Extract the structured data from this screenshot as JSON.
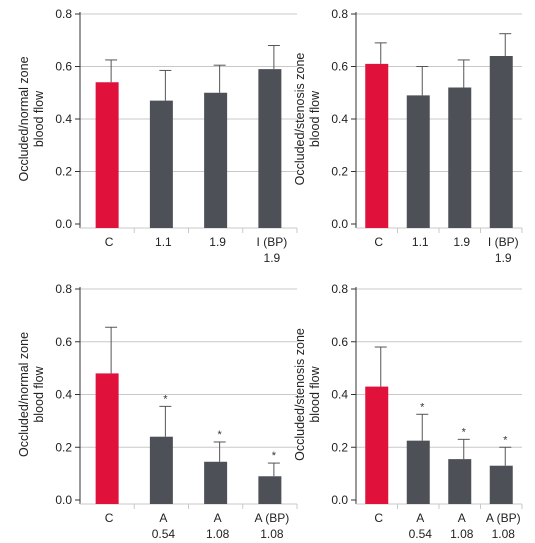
{
  "colors": {
    "control": "#e0123c",
    "treatment": "#4d5157",
    "grid": "#c8c8c8",
    "axis": "#333333",
    "errorbar": "#555555"
  },
  "chart_data": [
    {
      "type": "bar",
      "ylabel": [
        "Occluded/normal zone",
        "blood flow"
      ],
      "ylim": [
        0,
        0.8
      ],
      "yticks": [
        "0.0",
        "0.2",
        "0.4",
        "0.6",
        "0.8"
      ],
      "grid": true,
      "categories": [
        [
          "C"
        ],
        [
          "1.1"
        ],
        [
          "1.9"
        ],
        [
          "I (BP)",
          "1.9"
        ]
      ],
      "values": [
        0.54,
        0.47,
        0.5,
        0.59
      ],
      "errors": [
        0.085,
        0.115,
        0.105,
        0.09
      ],
      "stars": [
        "",
        "",
        "",
        ""
      ]
    },
    {
      "type": "bar",
      "ylabel": [
        "Occluded/stenosis zone",
        "blood flow"
      ],
      "ylim": [
        0,
        0.8
      ],
      "yticks": [
        "0.0",
        "0.2",
        "0.4",
        "0.6",
        "0.8"
      ],
      "grid": true,
      "categories": [
        [
          "C"
        ],
        [
          "1.1"
        ],
        [
          "1.9"
        ],
        [
          "I (BP)",
          "1.9"
        ]
      ],
      "values": [
        0.61,
        0.49,
        0.52,
        0.64
      ],
      "errors": [
        0.08,
        0.11,
        0.105,
        0.085
      ],
      "stars": [
        "",
        "",
        "",
        ""
      ]
    },
    {
      "type": "bar",
      "ylabel": [
        "Occluded/normal zone",
        "blood flow"
      ],
      "ylim": [
        0,
        0.8
      ],
      "yticks": [
        "0.0",
        "0.2",
        "0.4",
        "0.6",
        "0.8"
      ],
      "grid": true,
      "categories": [
        [
          "C"
        ],
        [
          "A",
          "0.54"
        ],
        [
          "A",
          "1.08"
        ],
        [
          "A (BP)",
          "1.08"
        ]
      ],
      "values": [
        0.48,
        0.24,
        0.145,
        0.09
      ],
      "errors": [
        0.175,
        0.115,
        0.075,
        0.05
      ],
      "stars": [
        "",
        "*",
        "*",
        "*"
      ]
    },
    {
      "type": "bar",
      "ylabel": [
        "Occluded/stenosis zone",
        "blood flow"
      ],
      "ylim": [
        0,
        0.8
      ],
      "yticks": [
        "0.0",
        "0.2",
        "0.4",
        "0.6",
        "0.8"
      ],
      "grid": true,
      "categories": [
        [
          "C"
        ],
        [
          "A",
          "0.54"
        ],
        [
          "A",
          "1.08"
        ],
        [
          "A (BP)",
          "1.08"
        ]
      ],
      "values": [
        0.43,
        0.225,
        0.155,
        0.13
      ],
      "errors": [
        0.15,
        0.1,
        0.075,
        0.07
      ],
      "stars": [
        "",
        "*",
        "*",
        "*"
      ]
    }
  ]
}
